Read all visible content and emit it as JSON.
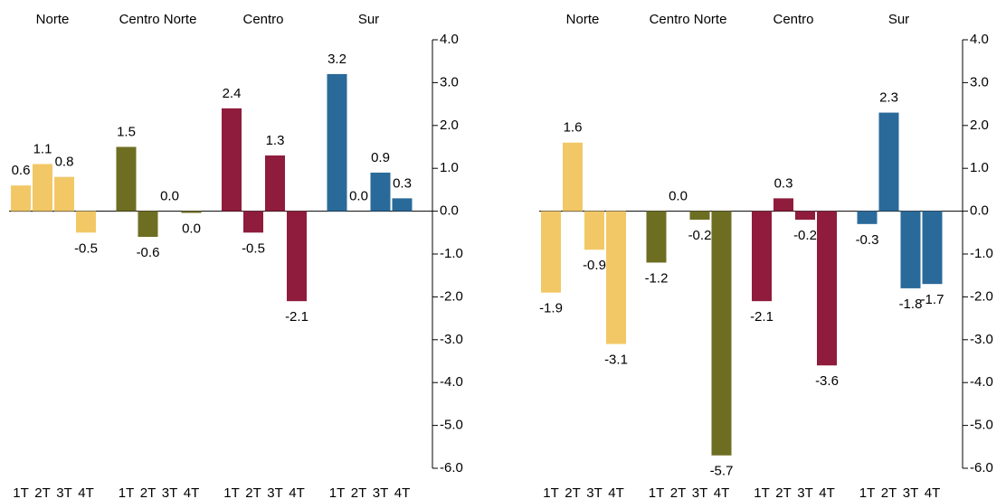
{
  "chart_data": [
    {
      "type": "bar",
      "categories": [
        "1T",
        "2T",
        "3T",
        "4T"
      ],
      "series": [
        {
          "name": "Norte",
          "color": "#f2c867",
          "values": [
            0.6,
            1.1,
            0.8,
            -0.5
          ],
          "value_labels": [
            "0.6",
            "1.1",
            "0.8",
            "-0.5"
          ]
        },
        {
          "name": "Centro Norte",
          "color": "#6e6e23",
          "values": [
            1.5,
            -0.6,
            0.0,
            -0.04
          ],
          "value_labels": [
            "1.5",
            "-0.6",
            "0.0",
            "0.0"
          ]
        },
        {
          "name": "Centro",
          "color": "#8f1c3c",
          "values": [
            2.4,
            -0.5,
            1.3,
            -2.1
          ],
          "value_labels": [
            "2.4",
            "-0.5",
            "1.3",
            "-2.1"
          ]
        },
        {
          "name": "Sur",
          "color": "#2a6a9a",
          "values": [
            3.2,
            0.0,
            0.9,
            0.3
          ],
          "value_labels": [
            "3.2",
            "0.0",
            "0.9",
            "0.3"
          ]
        }
      ],
      "ylim": [
        -6,
        4
      ],
      "yticks": [
        {
          "value": 4,
          "label": "4.0"
        },
        {
          "value": 3,
          "label": "3.0"
        },
        {
          "value": 2,
          "label": "2.0"
        },
        {
          "value": 1,
          "label": "1.0"
        },
        {
          "value": 0,
          "label": "0.0"
        },
        {
          "value": -1,
          "label": "-1.0"
        },
        {
          "value": -2,
          "label": "-2.0"
        },
        {
          "value": -3,
          "label": "-3.0"
        },
        {
          "value": -4,
          "label": "-4.0"
        },
        {
          "value": -5,
          "label": "-5.0"
        },
        {
          "value": -6,
          "label": "-6.0"
        }
      ]
    },
    {
      "type": "bar",
      "categories": [
        "1T",
        "2T",
        "3T",
        "4T"
      ],
      "series": [
        {
          "name": "Norte",
          "color": "#f2c867",
          "values": [
            -1.9,
            1.6,
            -0.9,
            -3.1
          ],
          "value_labels": [
            "-1.9",
            "1.6",
            "-0.9",
            "-3.1"
          ]
        },
        {
          "name": "Centro Norte",
          "color": "#6e6e23",
          "values": [
            -1.2,
            0.0,
            -0.2,
            -5.7
          ],
          "value_labels": [
            "-1.2",
            "0.0",
            "-0.2",
            "-5.7"
          ]
        },
        {
          "name": "Centro",
          "color": "#8f1c3c",
          "values": [
            -2.1,
            0.3,
            -0.2,
            -3.6
          ],
          "value_labels": [
            "-2.1",
            "0.3",
            "-0.2",
            "-3.6"
          ]
        },
        {
          "name": "Sur",
          "color": "#2a6a9a",
          "values": [
            -0.3,
            2.3,
            -1.8,
            -1.7
          ],
          "value_labels": [
            "-0.3",
            "2.3",
            "-1.8",
            "-1.7"
          ]
        }
      ],
      "ylim": [
        -6,
        4
      ],
      "yticks": [
        {
          "value": 4,
          "label": "4.0"
        },
        {
          "value": 3,
          "label": "3.0"
        },
        {
          "value": 2,
          "label": "2.0"
        },
        {
          "value": 1,
          "label": "1.0"
        },
        {
          "value": 0,
          "label": "0.0"
        },
        {
          "value": -1,
          "label": "-1.0"
        },
        {
          "value": -2,
          "label": "-2.0"
        },
        {
          "value": -3,
          "label": "-3.0"
        },
        {
          "value": -4,
          "label": "-4.0"
        },
        {
          "value": -5,
          "label": "-5.0"
        },
        {
          "value": -6,
          "label": "-6.0"
        }
      ]
    }
  ]
}
